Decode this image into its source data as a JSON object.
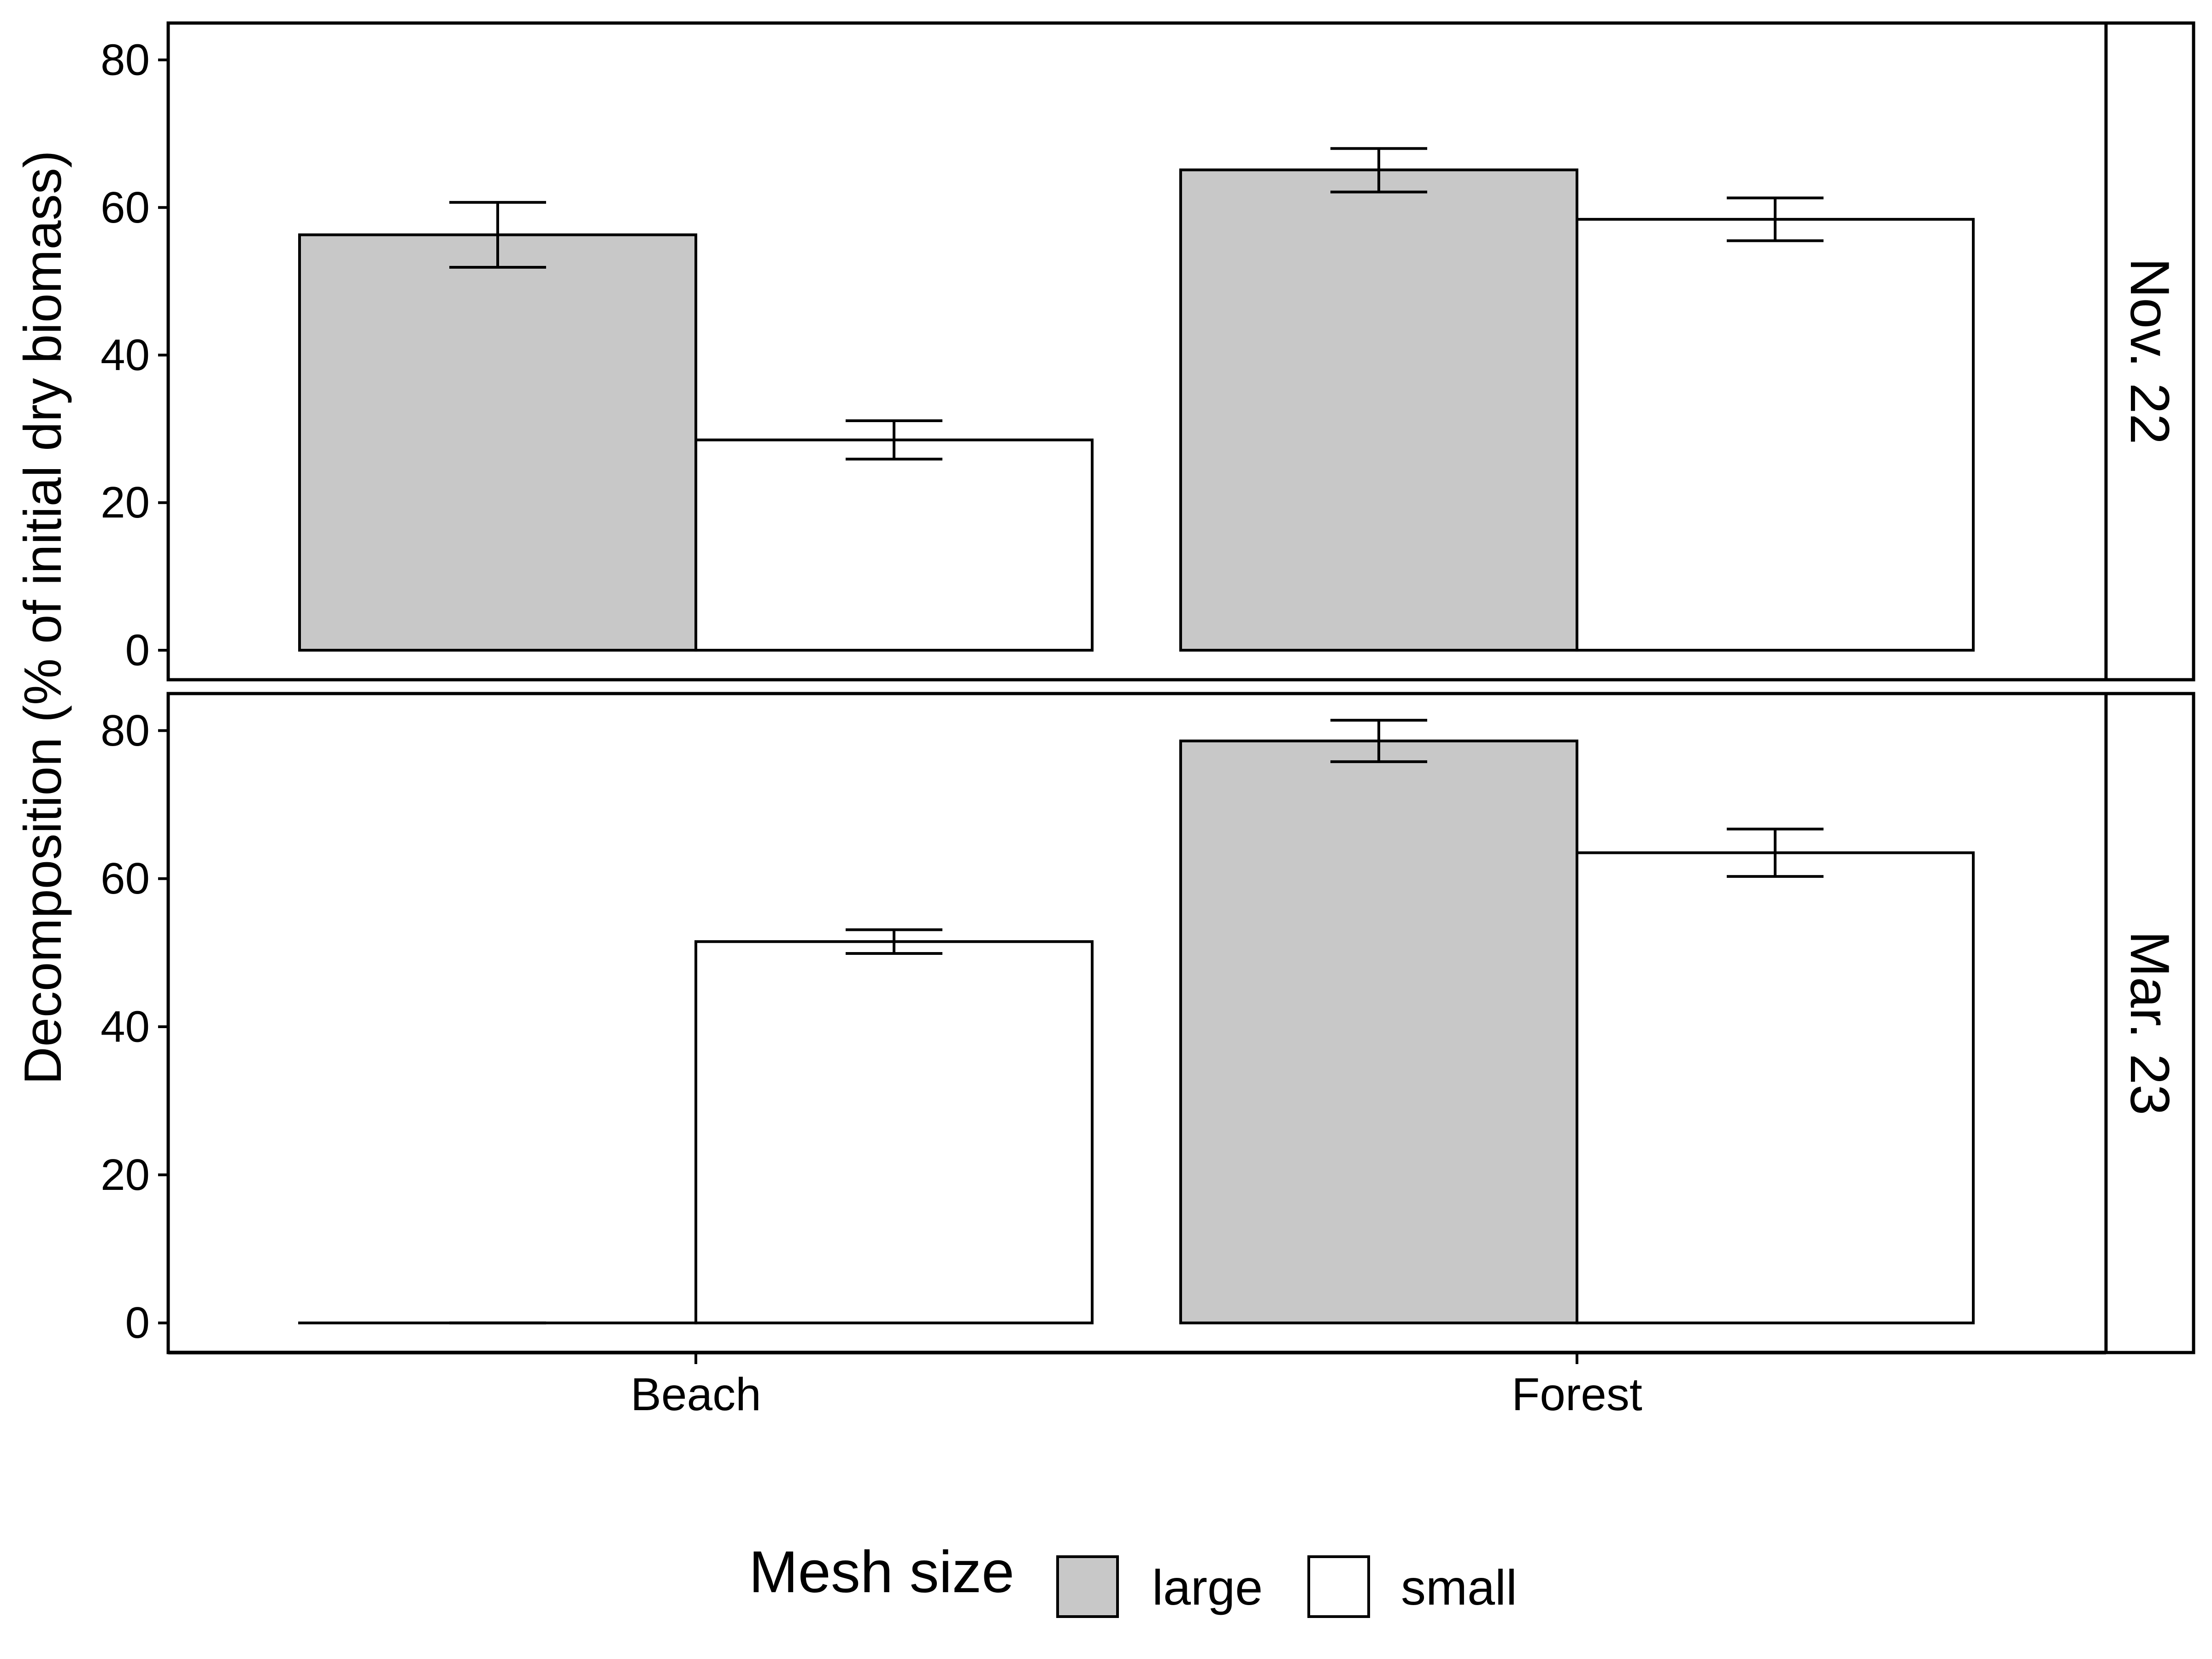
{
  "chart_data": {
    "type": "bar",
    "ylabel": "Decomposition (% of initial dry biomass)",
    "xlabel": "",
    "categories": [
      "Beach",
      "Forest"
    ],
    "ylim": [
      -4,
      85
    ],
    "yticks": [
      "0",
      "20",
      "40",
      "60",
      "80"
    ],
    "grid": false,
    "legend": {
      "title": "Mesh size",
      "position": "bottom",
      "entries": [
        {
          "label": "large",
          "color": "#c8c8c8"
        },
        {
          "label": "small",
          "color": "#ffffff"
        }
      ]
    },
    "panels": [
      {
        "strip": "Nov. 22",
        "series": [
          {
            "name": "large",
            "values": [
              56.3,
              65.1
            ],
            "error_low": [
              51.9,
              62.1
            ],
            "error_high": [
              60.7,
              68.0
            ]
          },
          {
            "name": "small",
            "values": [
              28.5,
              58.4
            ],
            "error_low": [
              25.9,
              55.5
            ],
            "error_high": [
              31.1,
              61.3
            ]
          }
        ]
      },
      {
        "strip": "Mar. 23",
        "series": [
          {
            "name": "large",
            "values": [
              0.0,
              78.6
            ],
            "error_low": [
              0.0,
              75.8
            ],
            "error_high": [
              0.0,
              81.4
            ]
          },
          {
            "name": "small",
            "values": [
              51.5,
              63.5
            ],
            "error_low": [
              49.9,
              60.3
            ],
            "error_high": [
              53.1,
              66.7
            ]
          }
        ]
      }
    ]
  }
}
